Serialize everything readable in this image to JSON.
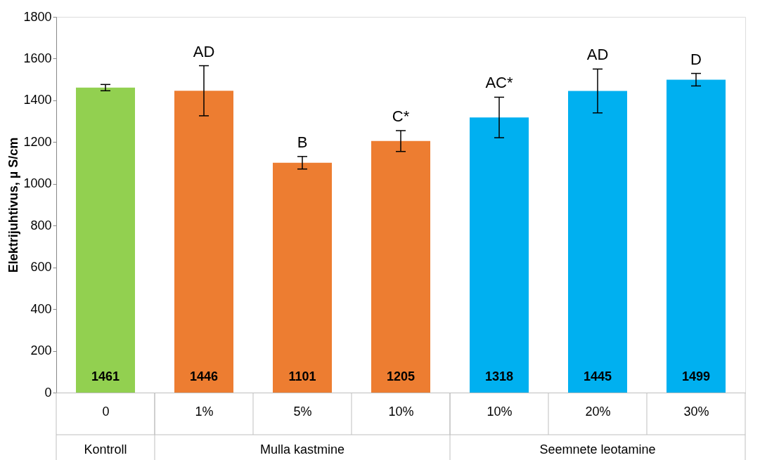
{
  "chart_data": {
    "type": "bar",
    "ylabel": "Elektrijuhtivus, µ S/cm",
    "categories": [
      "0",
      "1%",
      "5%",
      "10%",
      "10%",
      "20%",
      "30%"
    ],
    "values": [
      1461,
      1446,
      1101,
      1205,
      1318,
      1445,
      1499
    ],
    "colors": [
      "#92d050",
      "#ed7d31",
      "#ed7d31",
      "#ed7d31",
      "#00b0f0",
      "#00b0f0",
      "#00b0f0"
    ],
    "errors": [
      15,
      120,
      30,
      50,
      97,
      105,
      30
    ],
    "data_labels": true,
    "ylim": [
      0,
      1800
    ],
    "yticks": [
      0,
      200,
      400,
      600,
      800,
      1000,
      1200,
      1400,
      1600,
      1800
    ],
    "grid": false,
    "annotations": [
      {
        "text": "AD",
        "x": "1%",
        "y": 1566
      },
      {
        "text": "B",
        "x": "5%",
        "y": 1131
      },
      {
        "text": "C*",
        "x": "10%",
        "y": 1255
      },
      {
        "text": "AC*",
        "y": 1415
      },
      {
        "text": "AD",
        "x": "20%",
        "y": 1550
      },
      {
        "text": "D",
        "x": "30%",
        "y": 1529
      },
      "Kontroll",
      "Mulla kastmine",
      "Seemnete leotamine"
    ]
  }
}
